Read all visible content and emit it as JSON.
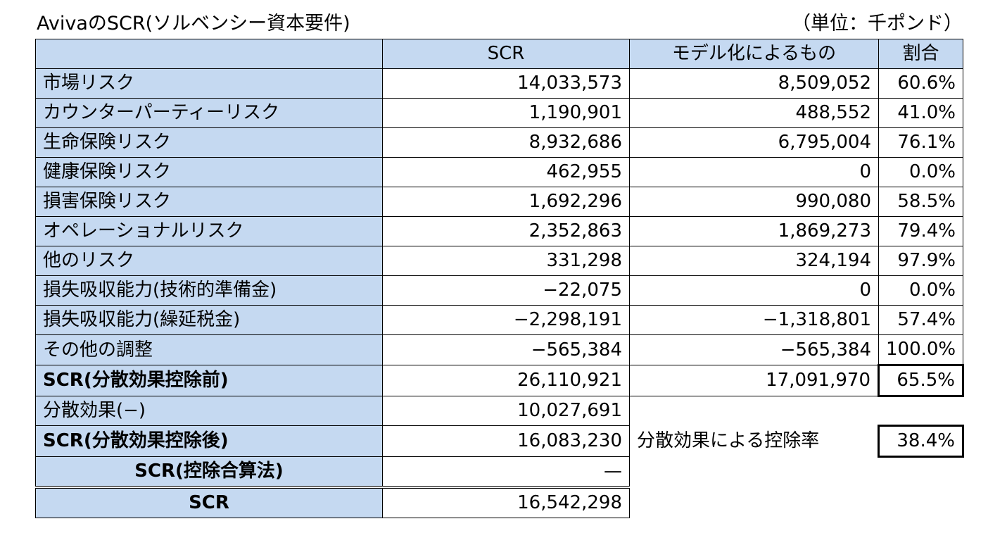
{
  "title": "AvivaのSCR(ソルベンシー資本要件)",
  "unit": "（単位：千ポンド）",
  "headers": {
    "scr": "SCR",
    "modeled": "モデル化によるもの",
    "ratio": "割合"
  },
  "rows": [
    {
      "label": "市場リスク",
      "scr": "14,033,573",
      "modeled": "8,509,052",
      "ratio": "60.6%"
    },
    {
      "label": "カウンターパーティーリスク",
      "scr": "1,190,901",
      "modeled": "488,552",
      "ratio": "41.0%"
    },
    {
      "label": "生命保険リスク",
      "scr": "8,932,686",
      "modeled": "6,795,004",
      "ratio": "76.1%"
    },
    {
      "label": "健康保険リスク",
      "scr": "462,955",
      "modeled": "0",
      "ratio": "0.0%"
    },
    {
      "label": "損害保険リスク",
      "scr": "1,692,296",
      "modeled": "990,080",
      "ratio": "58.5%"
    },
    {
      "label": "オペレーショナルリスク",
      "scr": "2,352,863",
      "modeled": "1,869,273",
      "ratio": "79.4%"
    },
    {
      "label": "他のリスク",
      "scr": "331,298",
      "modeled": "324,194",
      "ratio": "97.9%"
    },
    {
      "label": "損失吸収能力(技術的準備金)",
      "scr": "−22,075",
      "modeled": "0",
      "ratio": "0.0%"
    },
    {
      "label": "損失吸収能力(繰延税金)",
      "scr": "−2,298,191",
      "modeled": "−1,318,801",
      "ratio": "57.4%"
    },
    {
      "label": "その他の調整",
      "scr": "−565,384",
      "modeled": "−565,384",
      "ratio": "100.0%"
    }
  ],
  "before_div": {
    "label": "SCR(分散効果控除前)",
    "scr": "26,110,921",
    "modeled": "17,091,970",
    "ratio": "65.5%"
  },
  "diversification": {
    "label": "分散効果(−)",
    "scr": "10,027,691"
  },
  "after_div": {
    "label": "SCR(分散効果控除後)",
    "scr": "16,083,230",
    "rate_label": "分散効果による控除率",
    "rate": "38.4%"
  },
  "deduction_method": {
    "label": "SCR(控除合算法)",
    "scr": "—"
  },
  "total": {
    "label": "SCR",
    "scr": "16,542,298"
  },
  "colors": {
    "label_background": "#c5d9f1",
    "border": "#000000"
  }
}
